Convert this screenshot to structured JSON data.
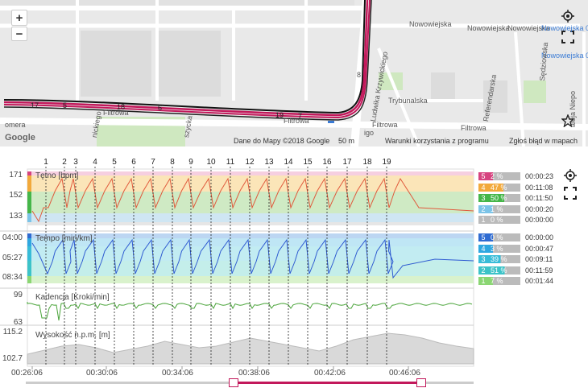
{
  "map": {
    "zoom_in": "+",
    "zoom_out": "−",
    "streets": {
      "nowowiejska_1": "Nowowiejska",
      "nowowiejska_2": "Nowowiejska",
      "nowowiejska_3": "Nowowiejska",
      "stop_05": "Nowowiejska 05",
      "stop_04": "Nowowiejska 04",
      "sedziowska": "Sędziowska",
      "referendarska": "Referendarska",
      "trybunalska": "Trybunalska",
      "krzywickiego": "Ludwika Krzywickiego",
      "filtrowa_1": "Filtrowa",
      "filtrowa_2": "Filtrowa",
      "filtrowa_3": "Filtrowa",
      "filtrowa_4": "Filtrowa",
      "aleja": "aleja Niepo",
      "nickiego": "nickiego",
      "szycka": "szycka",
      "komera": "omera",
      "igo": "igo",
      "route_8": "8"
    },
    "lap_markers": [
      "17",
      "5",
      "18",
      "6",
      "19",
      "7"
    ],
    "attribution": {
      "google": "Google",
      "map_data": "Dane do Mapy ©2018 Google",
      "scale": "50 m",
      "terms": "Warunki korzystania z programu",
      "report": "Zgłoś błąd w mapach"
    }
  },
  "laps": [
    "1",
    "2",
    "3",
    "4",
    "5",
    "6",
    "7",
    "8",
    "9",
    "10",
    "11",
    "12",
    "13",
    "14",
    "15",
    "16",
    "17",
    "18",
    "19"
  ],
  "charts": {
    "hr": {
      "label": "Tętno [bpm]",
      "ticks": [
        "171",
        "152",
        "133"
      ],
      "color": "#e05a3c",
      "zones": [
        {
          "num": "5",
          "pct": "2 %",
          "time": "00:00:23",
          "color": "#d6437f"
        },
        {
          "num": "4",
          "pct": "47 %",
          "time": "00:11:08",
          "color": "#f2a93b"
        },
        {
          "num": "3",
          "pct": "50 %",
          "time": "00:11:50",
          "color": "#45b649"
        },
        {
          "num": "2",
          "pct": "1 %",
          "time": "00:00:20",
          "color": "#7cc4e8"
        },
        {
          "num": "1",
          "pct": "0 %",
          "time": "00:00:00",
          "color": "#bbbbbb"
        }
      ]
    },
    "pace": {
      "label": "Tempo [min/km]",
      "ticks": [
        "04:00",
        "05:27",
        "08:34"
      ],
      "color": "#2f5bd1",
      "zones": [
        {
          "num": "5",
          "pct": "0 %",
          "time": "00:00:00",
          "color": "#2f6bd1"
        },
        {
          "num": "4",
          "pct": "3 %",
          "time": "00:00:47",
          "color": "#2fa7e0"
        },
        {
          "num": "3",
          "pct": "39 %",
          "time": "00:09:11",
          "color": "#38bcd8"
        },
        {
          "num": "2",
          "pct": "51 %",
          "time": "00:11:59",
          "color": "#3cc3c8"
        },
        {
          "num": "1",
          "pct": "7 %",
          "time": "00:01:44",
          "color": "#8bd673"
        }
      ]
    },
    "cadence": {
      "label": "Kadencja [Kroki/min]",
      "ticks": [
        "99",
        "63"
      ],
      "color": "#4aa43a"
    },
    "elevation": {
      "label": "Wysokość n.p.m. [m]",
      "ticks": [
        "115.2",
        "102.7"
      ]
    }
  },
  "time_axis": [
    "00:26:06",
    "00:30:06",
    "00:34:06",
    "00:38:06",
    "00:42:06",
    "00:46:06"
  ]
}
